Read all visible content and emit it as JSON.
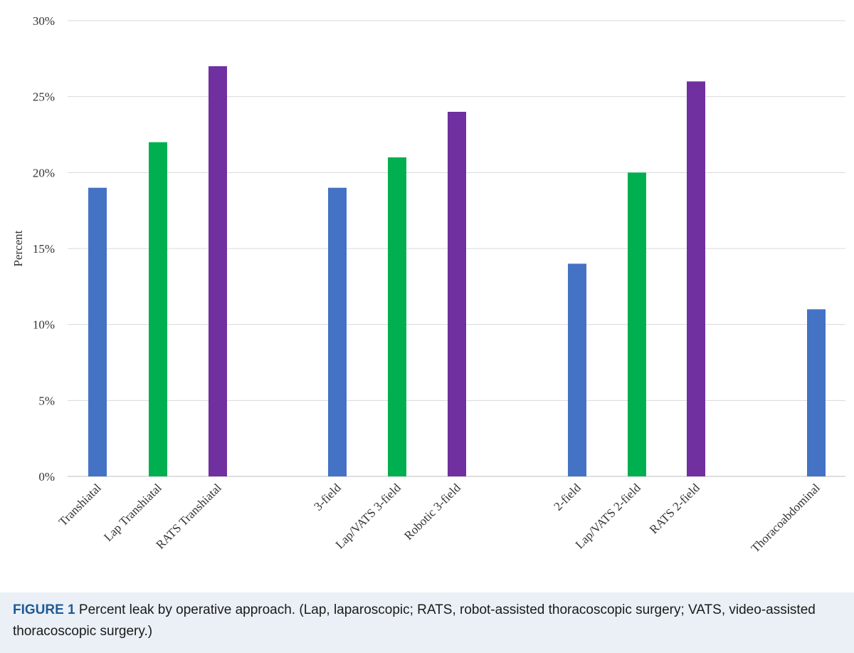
{
  "chart_data": {
    "type": "bar",
    "categories": [
      "Transhiatal",
      "Lap Transhiatal",
      "RATS Transhiatal",
      "3-field",
      "Lap/VATS 3-field",
      "Robotic 3-field",
      "2-field",
      "Lap/VATS 2-field",
      "RATS 2-field",
      "Thoracoabdominal"
    ],
    "values": [
      19,
      22,
      27,
      19,
      21,
      24,
      14,
      20,
      26,
      11
    ],
    "groups": [
      {
        "members": [
          0,
          1,
          2
        ]
      },
      {
        "members": [
          3,
          4,
          5
        ]
      },
      {
        "members": [
          6,
          7,
          8
        ]
      },
      {
        "members": [
          9
        ]
      }
    ],
    "bar_colors": [
      "#4472c4",
      "#00b050",
      "#7030a0",
      "#4472c4",
      "#00b050",
      "#7030a0",
      "#4472c4",
      "#00b050",
      "#7030a0",
      "#4472c4"
    ],
    "ylabel": "Percent",
    "xlabel": "",
    "ylim": [
      0,
      30
    ],
    "yticks": [
      0,
      5,
      10,
      15,
      20,
      25,
      30
    ],
    "ytick_labels": [
      "0%",
      "5%",
      "10%",
      "15%",
      "20%",
      "25%",
      "30%"
    ],
    "grid": true,
    "legend": "none"
  },
  "caption": {
    "label": "FIGURE 1",
    "text": " Percent leak by operative approach. (Lap, laparoscopic; RATS, robot-assisted thoracoscopic surgery; VATS, video-assisted thoracoscopic surgery.)"
  }
}
